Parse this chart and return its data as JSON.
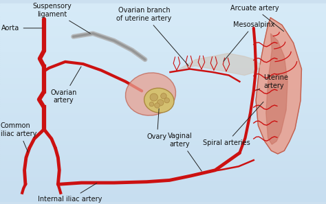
{
  "bg_color": "#cce0f0",
  "labels": {
    "aorta": "Aorta",
    "suspensory": "Suspensory\nligament",
    "ovarian_branch": "Ovarian branch\nof uterine artery",
    "arcuate": "Arcuate artery",
    "mesosalpinx": "Mesosalpinx",
    "common_iliac": "Common\niliac artery",
    "ovarian_artery": "Ovarian\nartery",
    "ovary": "Ovary",
    "uterine_artery": "Uterine\nartery",
    "vaginal_artery": "Vaginal\nartery",
    "internal_iliac": "Internal iliac artery",
    "spiral": "Spiral arteries"
  },
  "artery_color": "#cc1111",
  "organ_color": "#e8a090",
  "ovary_color": "#d4c070",
  "uterus_color": "#c87060",
  "label_color": "#111111",
  "label_fontsize": 7.0,
  "line_color": "#222222",
  "line_width": 0.7
}
